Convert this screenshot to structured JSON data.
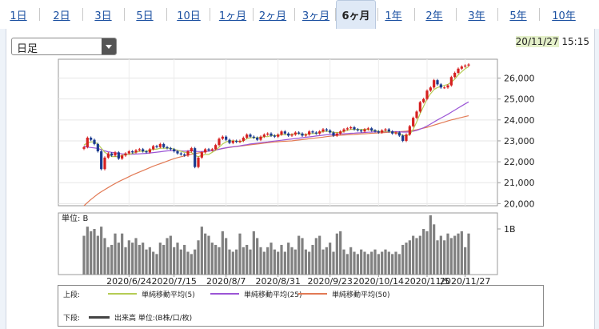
{
  "tabs": [
    {
      "label": "1日"
    },
    {
      "label": "2日"
    },
    {
      "label": "3日"
    },
    {
      "label": "5日"
    },
    {
      "label": "10日"
    },
    {
      "label": "1ヶ月"
    },
    {
      "label": "2ヶ月"
    },
    {
      "label": "3ヶ月"
    },
    {
      "label": "6ヶ月",
      "active": true
    },
    {
      "label": "1年"
    },
    {
      "label": "2年"
    },
    {
      "label": "3年"
    },
    {
      "label": "5年"
    },
    {
      "label": "10年"
    }
  ],
  "period_select": {
    "value": "日足"
  },
  "timestamp": {
    "date": "20/11/27",
    "time": "15:15"
  },
  "colors": {
    "up": "#d62020",
    "down": "#1a3a8f",
    "ma5": "#b5cc55",
    "ma25": "#9b55d6",
    "ma50": "#e27a55",
    "volume": "#808080",
    "active_tab": "#dfe9f6"
  },
  "volume_panel": {
    "unit_label": "単位: B",
    "tick_label": "1B"
  },
  "legend": {
    "upper_label": "上段:",
    "lower_label": "下段:",
    "items": [
      "単純移動平均(5)",
      "単純移動平均(25)",
      "単純移動平均(50)"
    ],
    "volume_item": "出来高 単位:(B株/口/枚)"
  },
  "chart_data": [
    {
      "type": "candlestick",
      "title": "",
      "x_tick_labels": [
        "2020/6/24",
        "2020/7/15",
        "2020/8/7",
        "2020/8/31",
        "2020/9/23",
        "2020/10/14",
        "2020/11/5",
        "2020/11/27"
      ],
      "y_tick_labels": [
        "20,000",
        "21,000",
        "22,000",
        "23,000",
        "24,000",
        "25,000",
        "26,000"
      ],
      "ylim": [
        19900,
        26900
      ],
      "grid": true,
      "close": [
        22700,
        23150,
        23050,
        22850,
        22500,
        21650,
        22200,
        22400,
        22300,
        22450,
        22150,
        22300,
        22400,
        22500,
        22450,
        22550,
        22600,
        22500,
        22450,
        22600,
        22750,
        22700,
        22850,
        22700,
        22650,
        22600,
        22500,
        22400,
        22350,
        22300,
        22500,
        22650,
        21750,
        22200,
        22450,
        22600,
        22550,
        22600,
        22800,
        23100,
        23200,
        23050,
        22900,
        23000,
        22950,
        23000,
        23150,
        23300,
        23200,
        23150,
        23050,
        23200,
        23300,
        23350,
        23250,
        23200,
        23300,
        23450,
        23350,
        23250,
        23300,
        23400,
        23350,
        23250,
        23300,
        23450,
        23400,
        23350,
        23450,
        23550,
        23500,
        23400,
        23250,
        23350,
        23450,
        23550,
        23600,
        23650,
        23550,
        23500,
        23450,
        23550,
        23600,
        23500,
        23450,
        23400,
        23500,
        23550,
        23450,
        23350,
        23400,
        23250,
        23000,
        23300,
        23700,
        24100,
        24400,
        24850,
        25000,
        25400,
        25550,
        25900,
        25700,
        25550,
        25550,
        25650,
        26050,
        26250,
        26450,
        26550,
        26600,
        26650
      ],
      "ma5": [
        22800,
        22900,
        22950,
        22950,
        22850,
        22650,
        22450,
        22350,
        22250,
        22250,
        22250,
        22300,
        22350,
        22350,
        22400,
        22450,
        22500,
        22500,
        22500,
        22550,
        22600,
        22600,
        22650,
        22650,
        22650,
        22650,
        22600,
        22550,
        22500,
        22450,
        22450,
        22450,
        22300,
        22250,
        22300,
        22350,
        22350,
        22450,
        22550,
        22700,
        22850,
        22950,
        23000,
        23000,
        23000,
        22950,
        23000,
        23100,
        23150,
        23150,
        23150,
        23150,
        23200,
        23200,
        23250,
        23250,
        23250,
        23300,
        23300,
        23300,
        23300,
        23350,
        23350,
        23300,
        23300,
        23350,
        23350,
        23350,
        23400,
        23450,
        23450,
        23450,
        23400,
        23400,
        23400,
        23450,
        23500,
        23550,
        23550,
        23550,
        23550,
        23550,
        23550,
        23500,
        23500,
        23450,
        23450,
        23450,
        23450,
        23400,
        23400,
        23350,
        23250,
        23250,
        23300,
        23550,
        23900,
        24300,
        24650,
        25000,
        25250,
        25450,
        25550,
        25600,
        25650,
        25700,
        25800,
        25950,
        26150,
        26300,
        26450,
        26550
      ],
      "ma25": [
        22750,
        22700,
        22680,
        22660,
        22640,
        22580,
        22520,
        22480,
        22450,
        22430,
        22400,
        22380,
        22370,
        22360,
        22360,
        22370,
        22380,
        22390,
        22400,
        22420,
        22440,
        22460,
        22480,
        22500,
        22520,
        22530,
        22530,
        22530,
        22520,
        22510,
        22520,
        22530,
        22500,
        22490,
        22490,
        22500,
        22510,
        22530,
        22560,
        22600,
        22640,
        22670,
        22700,
        22720,
        22740,
        22760,
        22790,
        22820,
        22850,
        22870,
        22890,
        22910,
        22930,
        22950,
        22970,
        22990,
        23010,
        23030,
        23050,
        23070,
        23090,
        23110,
        23130,
        23150,
        23170,
        23190,
        23210,
        23230,
        23250,
        23270,
        23290,
        23300,
        23310,
        23320,
        23330,
        23340,
        23350,
        23360,
        23370,
        23380,
        23390,
        23400,
        23410,
        23420,
        23430,
        23430,
        23440,
        23440,
        23440,
        23440,
        23440,
        23430,
        23420,
        23420,
        23430,
        23460,
        23500,
        23560,
        23630,
        23710,
        23800,
        23900,
        24000,
        24090,
        24180,
        24270,
        24370,
        24470,
        24570,
        24670,
        24770,
        24860
      ],
      "ma50": [
        19900,
        20050,
        20200,
        20330,
        20460,
        20570,
        20670,
        20770,
        20870,
        20960,
        21050,
        21130,
        21210,
        21290,
        21370,
        21440,
        21510,
        21580,
        21650,
        21720,
        21790,
        21850,
        21910,
        21970,
        22030,
        22090,
        22150,
        22200,
        22240,
        22280,
        22320,
        22360,
        22390,
        22420,
        22450,
        22480,
        22510,
        22540,
        22570,
        22600,
        22630,
        22660,
        22690,
        22710,
        22730,
        22750,
        22770,
        22790,
        22810,
        22830,
        22850,
        22870,
        22890,
        22910,
        22930,
        22950,
        22960,
        22970,
        22980,
        22990,
        23000,
        23020,
        23040,
        23060,
        23080,
        23100,
        23120,
        23140,
        23160,
        23180,
        23200,
        23220,
        23240,
        23260,
        23270,
        23280,
        23290,
        23300,
        23310,
        23320,
        23330,
        23340,
        23350,
        23360,
        23370,
        23380,
        23390,
        23400,
        23410,
        23420,
        23430,
        23440,
        23450,
        23460,
        23480,
        23500,
        23530,
        23570,
        23610,
        23650,
        23700,
        23750,
        23800,
        23850,
        23900,
        23950,
        24000,
        24040,
        24080,
        24120,
        24160,
        24200
      ],
      "volume": [
        0.85,
        1.05,
        0.95,
        1.0,
        0.85,
        1.05,
        0.8,
        0.6,
        0.65,
        0.9,
        0.7,
        0.9,
        0.6,
        0.75,
        0.7,
        0.8,
        0.65,
        0.7,
        0.55,
        0.6,
        0.5,
        0.45,
        0.7,
        0.65,
        0.8,
        0.85,
        0.6,
        0.7,
        0.55,
        0.65,
        0.5,
        0.45,
        0.55,
        0.75,
        1.05,
        0.9,
        0.85,
        0.7,
        0.65,
        0.6,
        0.95,
        0.8,
        0.55,
        0.5,
        0.55,
        0.9,
        0.6,
        0.65,
        0.55,
        0.95,
        0.8,
        0.6,
        0.5,
        0.6,
        0.7,
        0.55,
        0.5,
        0.65,
        0.5,
        0.7,
        0.6,
        0.55,
        0.85,
        0.8,
        0.55,
        0.5,
        0.65,
        0.8,
        0.85,
        0.55,
        0.6,
        0.7,
        0.5,
        0.9,
        0.95,
        0.55,
        0.45,
        0.6,
        0.5,
        0.45,
        0.55,
        0.5,
        0.45,
        0.5,
        0.55,
        0.45,
        0.5,
        0.55,
        0.5,
        0.45,
        0.5,
        0.45,
        0.65,
        0.7,
        0.75,
        0.85,
        0.8,
        0.85,
        1.0,
        0.95,
        1.3,
        1.1,
        0.75,
        0.85,
        0.75,
        0.9,
        0.8,
        0.85,
        0.9,
        0.95,
        0.6,
        0.9
      ]
    }
  ]
}
